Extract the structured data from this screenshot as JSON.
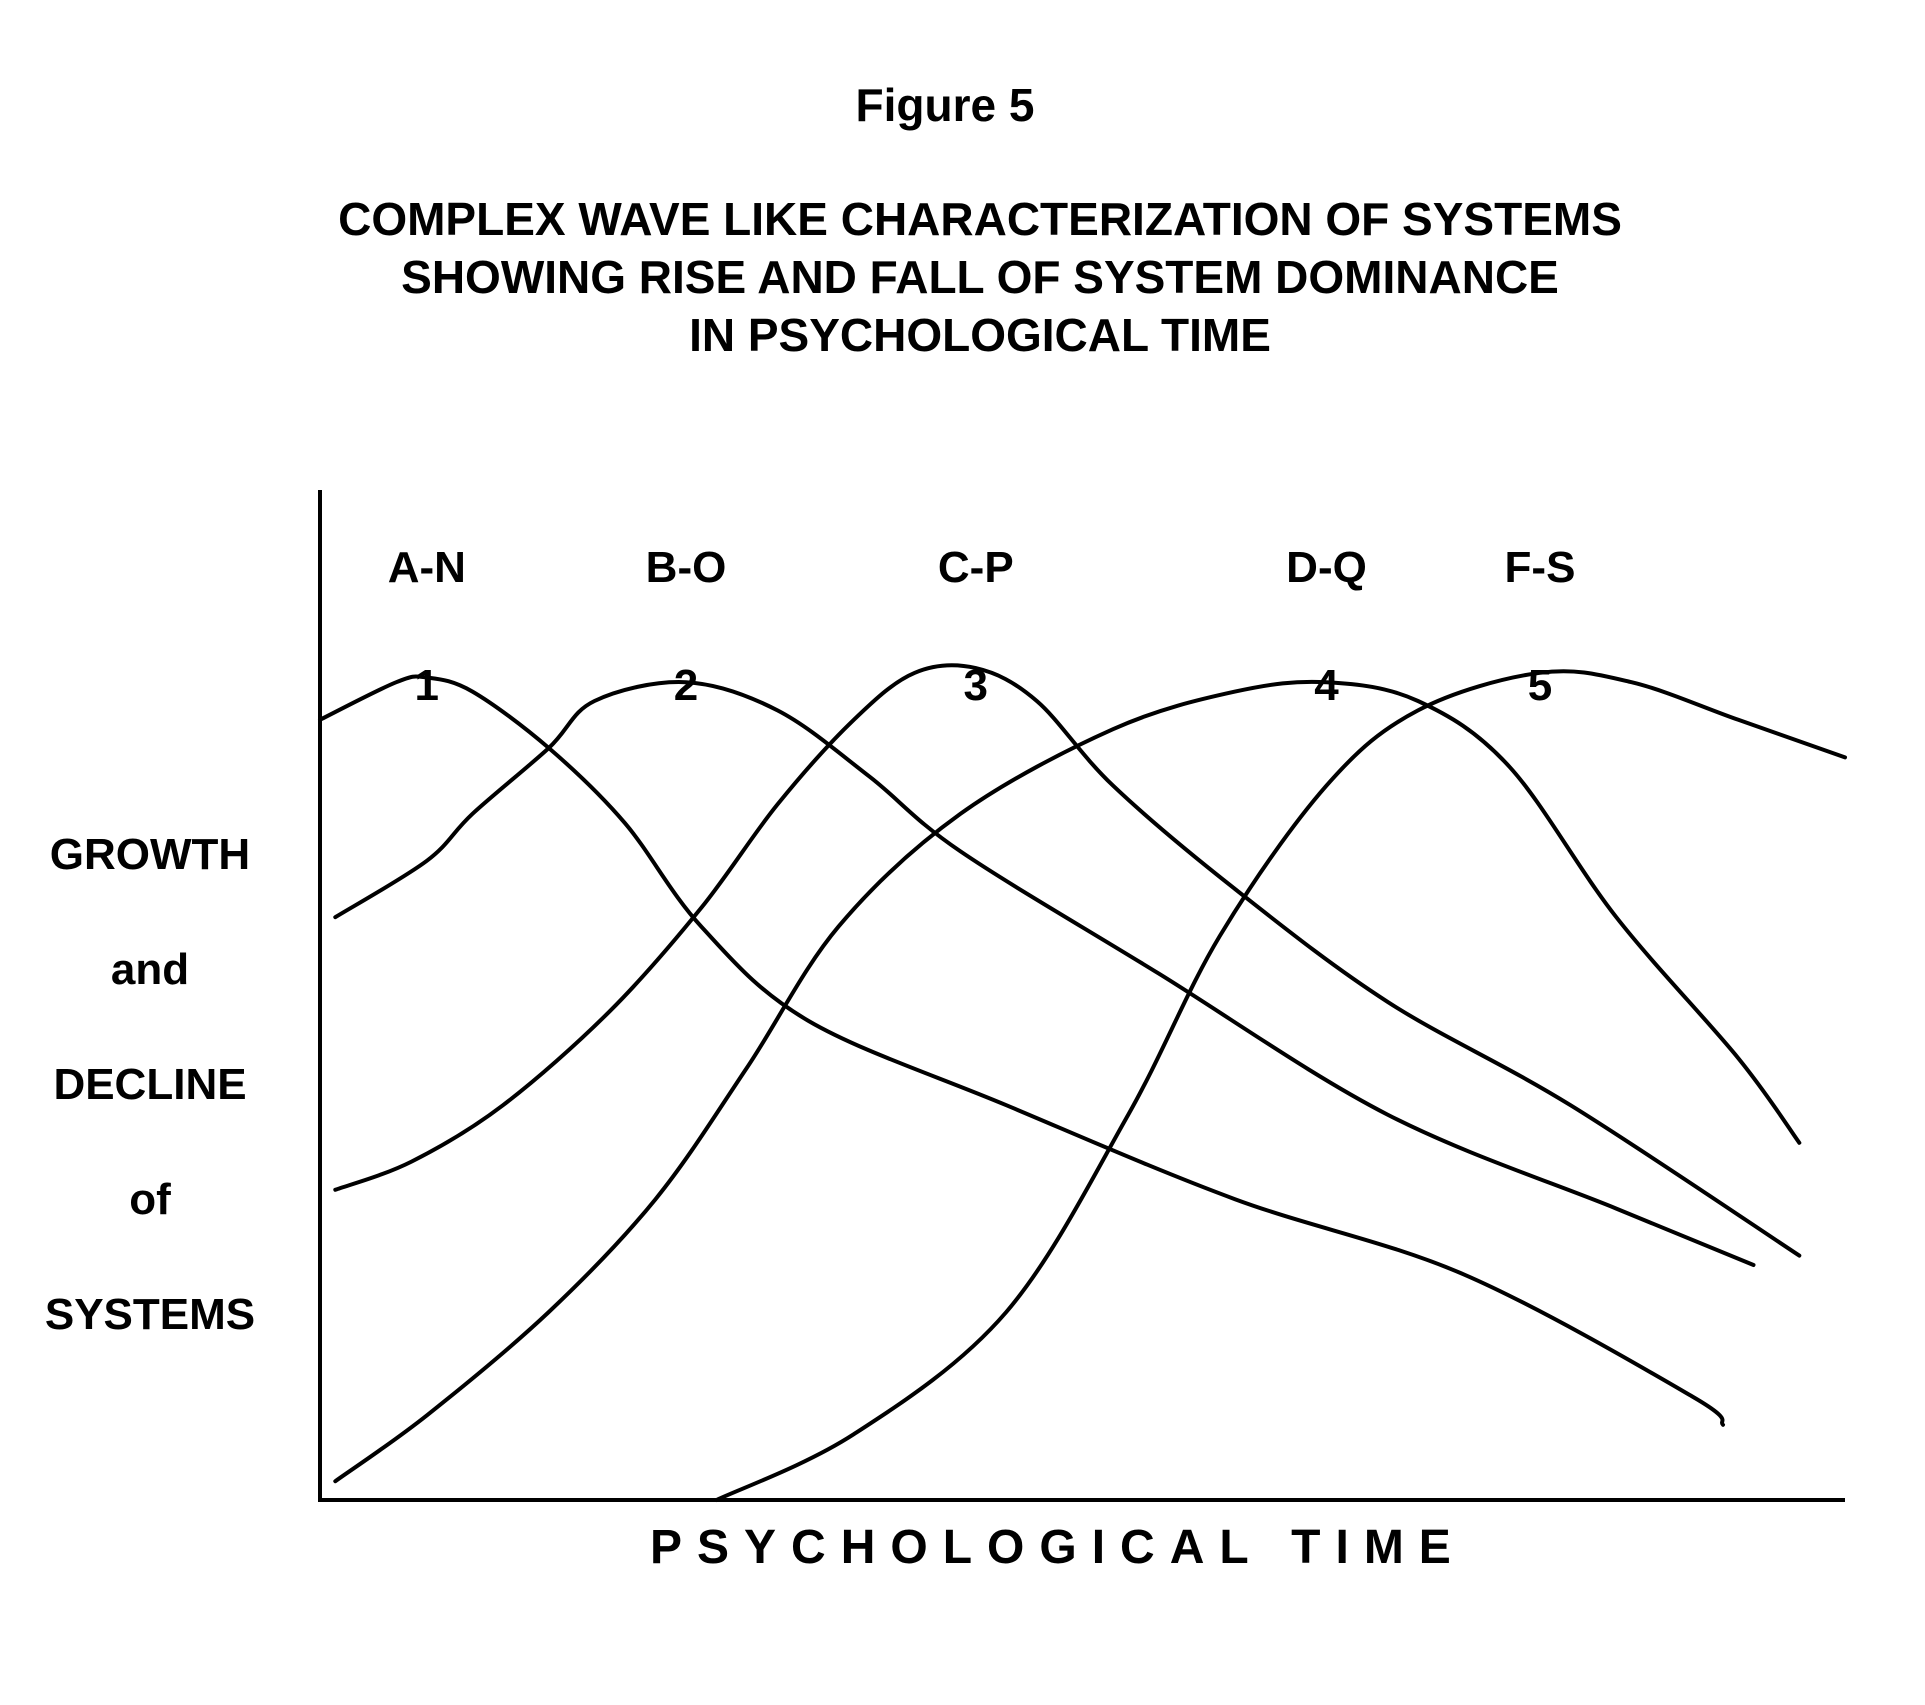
{
  "figure_label": "Figure 5",
  "title_lines": [
    "COMPLEX WAVE LIKE CHARACTERIZATION OF SYSTEMS",
    "SHOWING RISE AND FALL OF SYSTEM DOMINANCE",
    "IN PSYCHOLOGICAL TIME"
  ],
  "y_label_words": [
    "GROWTH",
    "and",
    "DECLINE",
    "of",
    "SYSTEMS"
  ],
  "x_label": "PSYCHOLOGICAL TIME",
  "colors": {
    "line": "#000000",
    "background": "#ffffff"
  },
  "chart_data": {
    "type": "line",
    "xlabel": "PSYCHOLOGICAL TIME",
    "ylabel": "GROWTH and DECLINE of SYSTEMS",
    "x_ticks": "none",
    "y_ticks": "none",
    "grid": false,
    "legend": "none",
    "series": [
      {
        "name": "A-N",
        "peak_label": "1",
        "points": [
          [
            0.0,
            0.83
          ],
          [
            0.05,
            0.87
          ],
          [
            0.07,
            0.875
          ],
          [
            0.1,
            0.86
          ],
          [
            0.15,
            0.8
          ],
          [
            0.2,
            0.72
          ],
          [
            0.25,
            0.61
          ],
          [
            0.32,
            0.51
          ],
          [
            0.45,
            0.42
          ],
          [
            0.6,
            0.32
          ],
          [
            0.75,
            0.24
          ],
          [
            0.9,
            0.11
          ],
          [
            0.92,
            0.08
          ]
        ]
      },
      {
        "name": "B-O",
        "peak_label": "2",
        "points": [
          [
            0.01,
            0.62
          ],
          [
            0.07,
            0.68
          ],
          [
            0.1,
            0.73
          ],
          [
            0.15,
            0.8
          ],
          [
            0.18,
            0.85
          ],
          [
            0.24,
            0.87
          ],
          [
            0.3,
            0.84
          ],
          [
            0.36,
            0.77
          ],
          [
            0.42,
            0.69
          ],
          [
            0.55,
            0.56
          ],
          [
            0.7,
            0.41
          ],
          [
            0.85,
            0.31
          ],
          [
            0.94,
            0.25
          ]
        ]
      },
      {
        "name": "C-P",
        "peak_label": "3",
        "points": [
          [
            0.01,
            0.33
          ],
          [
            0.06,
            0.36
          ],
          [
            0.12,
            0.42
          ],
          [
            0.19,
            0.52
          ],
          [
            0.25,
            0.63
          ],
          [
            0.3,
            0.74
          ],
          [
            0.35,
            0.83
          ],
          [
            0.39,
            0.88
          ],
          [
            0.43,
            0.885
          ],
          [
            0.47,
            0.85
          ],
          [
            0.52,
            0.76
          ],
          [
            0.6,
            0.65
          ],
          [
            0.7,
            0.53
          ],
          [
            0.82,
            0.42
          ],
          [
            0.97,
            0.26
          ]
        ]
      },
      {
        "name": "D-Q",
        "peak_label": "4",
        "points": [
          [
            0.01,
            0.02
          ],
          [
            0.07,
            0.09
          ],
          [
            0.15,
            0.2
          ],
          [
            0.22,
            0.32
          ],
          [
            0.28,
            0.46
          ],
          [
            0.34,
            0.61
          ],
          [
            0.42,
            0.73
          ],
          [
            0.52,
            0.82
          ],
          [
            0.6,
            0.86
          ],
          [
            0.66,
            0.87
          ],
          [
            0.72,
            0.85
          ],
          [
            0.78,
            0.78
          ],
          [
            0.85,
            0.62
          ],
          [
            0.93,
            0.47
          ],
          [
            0.97,
            0.38
          ]
        ]
      },
      {
        "name": "F-S",
        "peak_label": "5",
        "points": [
          [
            0.26,
            0.0
          ],
          [
            0.35,
            0.07
          ],
          [
            0.45,
            0.2
          ],
          [
            0.53,
            0.41
          ],
          [
            0.59,
            0.6
          ],
          [
            0.66,
            0.76
          ],
          [
            0.72,
            0.84
          ],
          [
            0.8,
            0.88
          ],
          [
            0.86,
            0.87
          ],
          [
            0.93,
            0.83
          ],
          [
            1.0,
            0.79
          ]
        ]
      }
    ]
  }
}
